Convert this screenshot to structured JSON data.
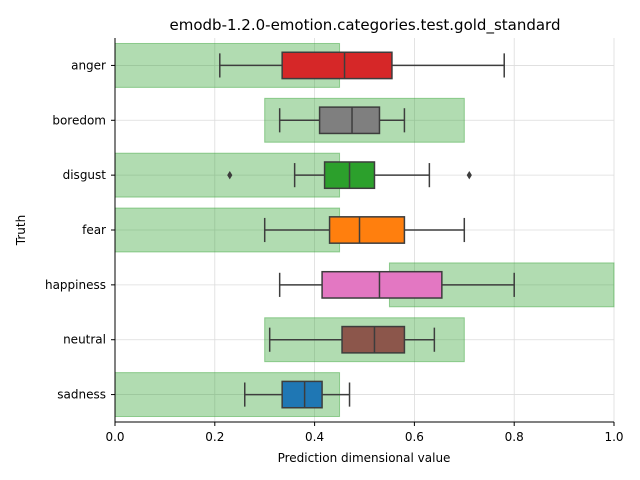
{
  "chart_data": {
    "type": "box",
    "title": "emodb-1.2.0-emotion.categories.test.gold_standard",
    "xlabel": "Prediction dimensional value",
    "ylabel": "Truth",
    "xlim": [
      0,
      1
    ],
    "xticks": [
      "0.0",
      "0.2",
      "0.4",
      "0.6",
      "0.8",
      "1.0"
    ],
    "grid": true,
    "categories": [
      "anger",
      "boredom",
      "disgust",
      "fear",
      "happiness",
      "neutral",
      "sadness"
    ],
    "boxes": [
      {
        "category": "anger",
        "whislo": 0.21,
        "q1": 0.335,
        "median": 0.46,
        "q3": 0.555,
        "whishi": 0.78,
        "outliers": [],
        "color": "#d62728"
      },
      {
        "category": "boredom",
        "whislo": 0.33,
        "q1": 0.41,
        "median": 0.475,
        "q3": 0.53,
        "whishi": 0.58,
        "outliers": [],
        "color": "#7f7f7f"
      },
      {
        "category": "disgust",
        "whislo": 0.36,
        "q1": 0.42,
        "median": 0.47,
        "q3": 0.52,
        "whishi": 0.63,
        "outliers": [
          0.23,
          0.71
        ],
        "color": "#2ca02c"
      },
      {
        "category": "fear",
        "whislo": 0.3,
        "q1": 0.43,
        "median": 0.49,
        "q3": 0.58,
        "whishi": 0.7,
        "outliers": [],
        "color": "#ff7f0e"
      },
      {
        "category": "happiness",
        "whislo": 0.33,
        "q1": 0.415,
        "median": 0.53,
        "q3": 0.655,
        "whishi": 0.8,
        "outliers": [],
        "color": "#e377c2"
      },
      {
        "category": "neutral",
        "whislo": 0.31,
        "q1": 0.455,
        "median": 0.52,
        "q3": 0.58,
        "whishi": 0.64,
        "outliers": [],
        "color": "#8c564b"
      },
      {
        "category": "sadness",
        "whislo": 0.26,
        "q1": 0.335,
        "median": 0.38,
        "q3": 0.415,
        "whishi": 0.47,
        "outliers": [],
        "color": "#1f77b4"
      }
    ],
    "target_ranges": [
      {
        "category": "anger",
        "range": [
          0.0,
          0.45
        ]
      },
      {
        "category": "boredom",
        "range": [
          0.3,
          0.7
        ]
      },
      {
        "category": "disgust",
        "range": [
          0.0,
          0.45
        ]
      },
      {
        "category": "fear",
        "range": [
          0.0,
          0.45
        ]
      },
      {
        "category": "happiness",
        "range": [
          0.55,
          1.0
        ]
      },
      {
        "category": "neutral",
        "range": [
          0.3,
          0.7
        ]
      },
      {
        "category": "sadness",
        "range": [
          0.0,
          0.45
        ]
      }
    ],
    "band_color": "#2ca02c"
  }
}
